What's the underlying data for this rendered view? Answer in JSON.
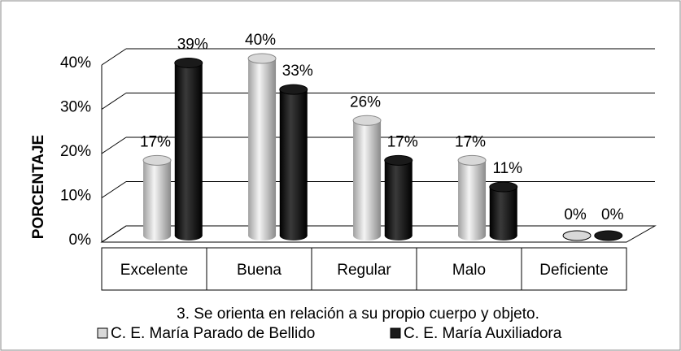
{
  "chart_data": {
    "type": "bar3d",
    "y_label": "PORCENTAJE",
    "x_label": "3.      Se orienta en relación  a su propio cuerpo y objeto.",
    "categories": [
      "Excelente",
      "Buena",
      "Regular",
      "Malo",
      "Deficiente"
    ],
    "series": [
      {
        "name": "C. E.  María Parado de Bellido",
        "color": "#d8d8d8",
        "values": [
          17,
          40,
          26,
          17,
          0
        ],
        "value_labels": [
          "17%",
          "40%",
          "26%",
          "17%",
          "0%"
        ]
      },
      {
        "name": "C. E.  María Auxiliadora",
        "color": "#1a1a1a",
        "values": [
          39,
          33,
          17,
          11,
          0
        ],
        "value_labels": [
          "39%",
          "33%",
          "17%",
          "11%",
          "0%"
        ]
      }
    ],
    "ylim": [
      0,
      40
    ],
    "yticks": [
      {
        "value": 0,
        "label": "0%"
      },
      {
        "value": 10,
        "label": "10%"
      },
      {
        "value": 20,
        "label": "20%"
      },
      {
        "value": 30,
        "label": "30%"
      },
      {
        "value": 40,
        "label": "40%"
      }
    ],
    "grid": true
  }
}
